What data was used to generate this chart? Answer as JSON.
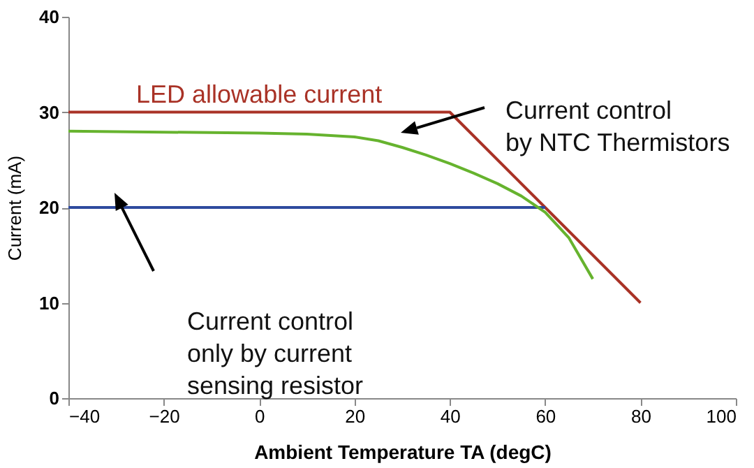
{
  "chart_data": {
    "type": "line",
    "xlabel": "Ambient Temperature TA (degC)",
    "ylabel": "Current (mA)",
    "xlim": [
      -40,
      100
    ],
    "xticks": [
      -40,
      -20,
      0,
      20,
      40,
      60,
      80,
      100
    ],
    "ylim": [
      0,
      40
    ],
    "yticks": [
      0,
      10,
      20,
      30,
      40
    ],
    "grid": false,
    "series": [
      {
        "name": "LED allowable current",
        "color": "#a93226",
        "x": [
          -40,
          40,
          80
        ],
        "values": [
          30,
          30,
          10
        ]
      },
      {
        "color": "#2e4a9e",
        "x": [
          -40,
          60
        ],
        "values": [
          20,
          20
        ]
      },
      {
        "color": "#66b32e",
        "x": [
          -40,
          -20,
          0,
          10,
          20,
          25,
          30,
          35,
          40,
          45,
          50,
          55,
          60,
          65,
          70
        ],
        "values": [
          28,
          27.9,
          27.8,
          27.7,
          27.4,
          27,
          26.3,
          25.5,
          24.6,
          23.6,
          22.5,
          21.2,
          19.5,
          16.8,
          12.5
        ]
      }
    ],
    "annotations": [
      "Current control\nby NTC Thermistors",
      "Current control\nonly by current\nsensing resistor"
    ]
  }
}
